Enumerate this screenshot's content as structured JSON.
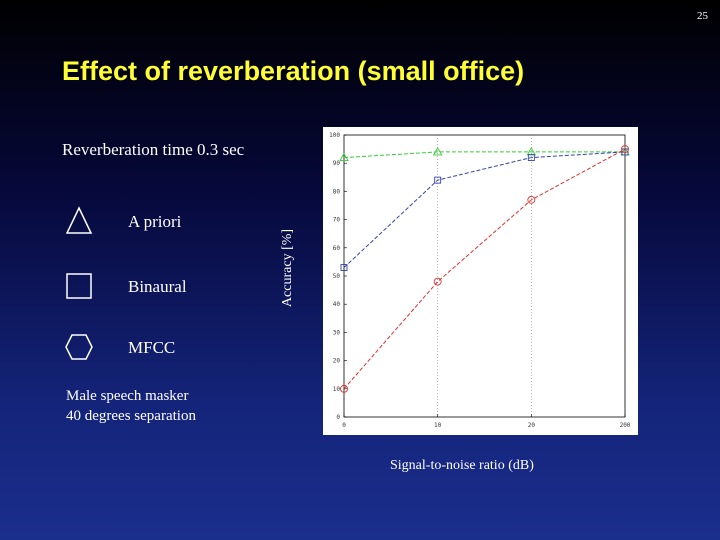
{
  "page_number": "25",
  "title": "Effect of reverberation (small office)",
  "subtitle": "Reverberation time 0.3 sec",
  "legend": [
    {
      "shape": "triangle-icon",
      "label": "A priori"
    },
    {
      "shape": "square-icon",
      "label": "Binaural"
    },
    {
      "shape": "hexagon-icon",
      "label": "MFCC"
    }
  ],
  "note": {
    "line1": "Male speech masker",
    "line2": "40 degrees separation"
  },
  "colors": {
    "title": "#ffff33",
    "a_priori": "#33cc33",
    "binaural": "#3344aa",
    "mfcc": "#e03030"
  },
  "chart_data": {
    "type": "line",
    "xlabel": "Signal-to-noise ratio (dB)",
    "ylabel": "Accuracy [%]",
    "categories": [
      "0",
      "10",
      "20",
      "200"
    ],
    "ylim": [
      0,
      100
    ],
    "yticks": [
      "0",
      "10",
      "20",
      "30",
      "40",
      "50",
      "60",
      "70",
      "80",
      "90",
      "100"
    ],
    "grid": "vertical dotted",
    "series": [
      {
        "name": "A priori",
        "color": "#33cc33",
        "marker": "triangle",
        "style": "dashed",
        "values": [
          92,
          94,
          94,
          94
        ]
      },
      {
        "name": "Binaural",
        "color": "#3344aa",
        "marker": "square",
        "style": "dashed",
        "values": [
          53,
          84,
          92,
          94
        ]
      },
      {
        "name": "MFCC",
        "color": "#e03030",
        "marker": "circle",
        "style": "dashed",
        "values": [
          10,
          48,
          77,
          95
        ]
      }
    ]
  }
}
